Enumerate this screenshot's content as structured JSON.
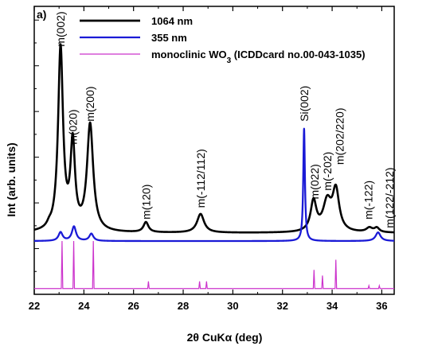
{
  "chart_data": {
    "type": "line",
    "panel_label": "a)",
    "xlabel": "2θ CuKα (deg)",
    "ylabel": "Int (arb. units)",
    "xlim": [
      22,
      36.5
    ],
    "x_ticks": [
      "22",
      "24",
      "26",
      "28",
      "30",
      "32",
      "34",
      "36"
    ],
    "x_tick_values": [
      22,
      24,
      26,
      28,
      30,
      32,
      34,
      36
    ],
    "ylim": [
      0,
      1
    ],
    "grid": false,
    "legend_position": "top-center",
    "colors": {
      "1064nm": "#000000",
      "355nm": "#1a1ad6",
      "reference": "#cc33cc"
    },
    "series": [
      {
        "name": "1064 nm",
        "baseline": 0.213,
        "peaks": [
          [
            22.6,
            0.01,
            0.1
          ],
          [
            23.06,
            0.635,
            0.12
          ],
          [
            23.55,
            0.295,
            0.11
          ],
          [
            24.25,
            0.37,
            0.15
          ],
          [
            26.5,
            0.035,
            0.12
          ],
          [
            28.7,
            0.065,
            0.17
          ],
          [
            33.25,
            0.105,
            0.14
          ],
          [
            33.8,
            0.1,
            0.2
          ],
          [
            34.15,
            0.14,
            0.16
          ],
          [
            35.5,
            0.015,
            0.15
          ],
          [
            35.8,
            0.015,
            0.12
          ]
        ]
      },
      {
        "name": "355 nm",
        "baseline": 0.185,
        "peaks": [
          [
            23.06,
            0.03,
            0.1
          ],
          [
            23.6,
            0.05,
            0.1
          ],
          [
            24.3,
            0.025,
            0.1
          ],
          [
            32.87,
            0.39,
            0.04
          ],
          [
            35.85,
            0.03,
            0.12
          ]
        ]
      },
      {
        "name": "monoclinic WO3 (ICDDcard no.00-043-1035)",
        "baseline": 0.02,
        "sticks": [
          [
            23.12,
            0.165
          ],
          [
            23.59,
            0.165
          ],
          [
            24.38,
            0.165
          ],
          [
            26.6,
            0.025
          ],
          [
            28.66,
            0.025
          ],
          [
            28.94,
            0.025
          ],
          [
            33.27,
            0.065
          ],
          [
            33.61,
            0.045
          ],
          [
            34.15,
            0.1
          ],
          [
            35.48,
            0.01
          ],
          [
            35.9,
            0.01
          ]
        ]
      }
    ],
    "legend": [
      {
        "label": "1064 nm"
      },
      {
        "label": "355 nm"
      },
      {
        "label_main": "monoclinic WO",
        "label_sub": "3",
        "label_tail": " (ICDDcard no.00-043-1035)"
      }
    ],
    "annotations": [
      {
        "text": "m(002)",
        "x": 23.06,
        "y": 0.86
      },
      {
        "text": "m(020)",
        "x": 23.55,
        "y": 0.52
      },
      {
        "text": "m(200)",
        "x": 24.25,
        "y": 0.6
      },
      {
        "text": "m(120)",
        "x": 26.5,
        "y": 0.26
      },
      {
        "text": "m(-112/112)",
        "x": 28.7,
        "y": 0.3
      },
      {
        "text": "Si(002)",
        "x": 32.87,
        "y": 0.6
      },
      {
        "text": "m(022)",
        "x": 33.3,
        "y": 0.33
      },
      {
        "text": "m(-202)",
        "x": 33.8,
        "y": 0.36
      },
      {
        "text": "m(202/220)",
        "x": 34.3,
        "y": 0.45
      },
      {
        "text": "m(-122)",
        "x": 35.45,
        "y": 0.26
      },
      {
        "text": "m(122/-212)",
        "x": 36.3,
        "y": 0.23
      }
    ]
  }
}
